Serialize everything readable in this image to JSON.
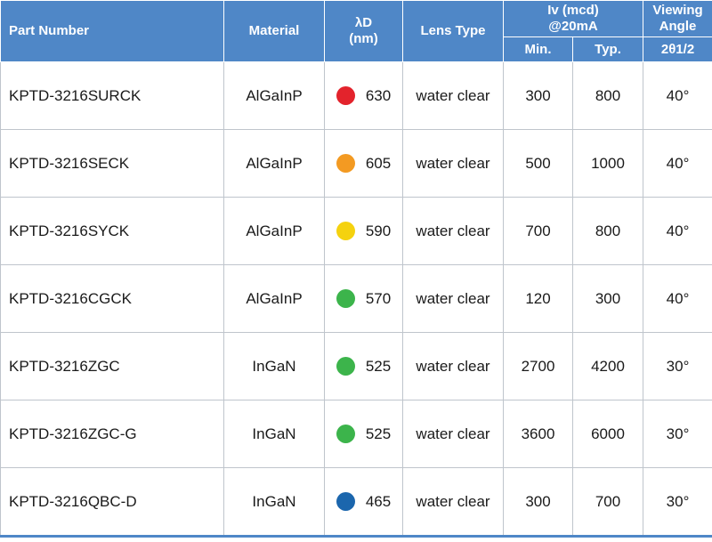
{
  "header": {
    "part_number": "Part Number",
    "material": "Material",
    "wavelength_l1": "λD",
    "wavelength_l2": "(nm)",
    "lens_type": "Lens Type",
    "iv_l1": "Iv (mcd)",
    "iv_l2": "@20mA",
    "iv_min": "Min.",
    "iv_typ": "Typ.",
    "angle_l1": "Viewing",
    "angle_l2": "Angle",
    "angle_sub": "2θ1/2"
  },
  "rows": [
    {
      "part": "KPTD-3216SURCK",
      "material": "AlGaInP",
      "color": "#e3232c",
      "wavelength": "630",
      "lens": "water clear",
      "min": "300",
      "typ": "800",
      "angle": "40°"
    },
    {
      "part": "KPTD-3216SECK",
      "material": "AlGaInP",
      "color": "#f39a22",
      "wavelength": "605",
      "lens": "water clear",
      "min": "500",
      "typ": "1000",
      "angle": "40°"
    },
    {
      "part": "KPTD-3216SYCK",
      "material": "AlGaInP",
      "color": "#f5d20f",
      "wavelength": "590",
      "lens": "water clear",
      "min": "700",
      "typ": "800",
      "angle": "40°"
    },
    {
      "part": "KPTD-3216CGCK",
      "material": "AlGaInP",
      "color": "#3cb44b",
      "wavelength": "570",
      "lens": "water clear",
      "min": "120",
      "typ": "300",
      "angle": "40°"
    },
    {
      "part": "KPTD-3216ZGC",
      "material": "InGaN",
      "color": "#3cb44b",
      "wavelength": "525",
      "lens": "water clear",
      "min": "2700",
      "typ": "4200",
      "angle": "30°"
    },
    {
      "part": "KPTD-3216ZGC-G",
      "material": "InGaN",
      "color": "#3cb44b",
      "wavelength": "525",
      "lens": "water clear",
      "min": "3600",
      "typ": "6000",
      "angle": "30°"
    },
    {
      "part": "KPTD-3216QBC-D",
      "material": "InGaN",
      "color": "#1b66ad",
      "wavelength": "465",
      "lens": "water clear",
      "min": "300",
      "typ": "700",
      "angle": "30°"
    }
  ]
}
